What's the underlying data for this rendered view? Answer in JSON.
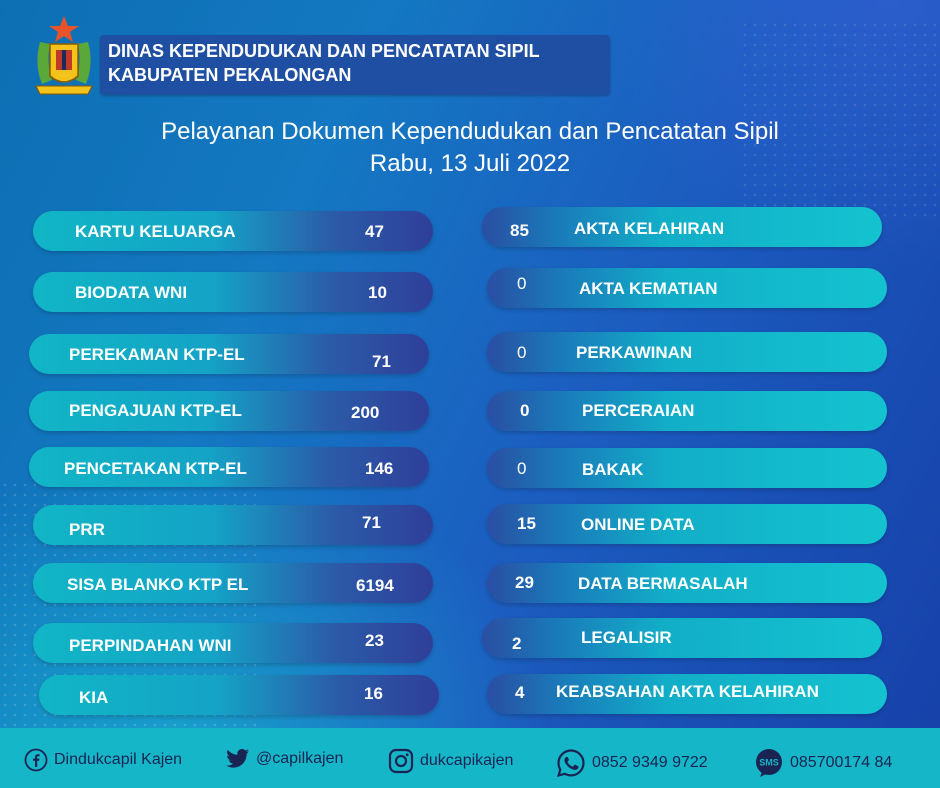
{
  "header": {
    "org_line1": "DINAS KEPENDUDUKAN DAN PENCATATAN SIPIL",
    "org_line2": "KABUPATEN PEKALONGAN",
    "title_line1": "Pelayanan Dokumen Kependudukan dan Pencatatan Sipil",
    "title_line2": "Rabu, 13 Juli 2022"
  },
  "left_items": [
    {
      "label": "KARTU KELUARGA",
      "value": "47"
    },
    {
      "label": "BIODATA WNI",
      "value": "10"
    },
    {
      "label": "PEREKAMAN KTP-EL",
      "value": "71"
    },
    {
      "label": "PENGAJUAN KTP-EL",
      "value": "200"
    },
    {
      "label": "PENCETAKAN KTP-EL",
      "value": "146"
    },
    {
      "label": "PRR",
      "value": "71"
    },
    {
      "label": "SISA BLANKO KTP EL",
      "value": "6194"
    },
    {
      "label": "PERPINDAHAN WNI",
      "value": "23"
    },
    {
      "label": "KIA",
      "value": "16"
    }
  ],
  "right_items": [
    {
      "value": "85",
      "label": "AKTA KELAHIRAN"
    },
    {
      "value": "0",
      "label": "AKTA KEMATIAN"
    },
    {
      "value": "0",
      "label": "PERKAWINAN"
    },
    {
      "value": "0",
      "label": "PERCERAIAN"
    },
    {
      "value": "0",
      "label": "BAKAK"
    },
    {
      "value": "15",
      "label": "ONLINE DATA"
    },
    {
      "value": "29",
      "label": "DATA BERMASALAH"
    },
    {
      "value": "2",
      "label": "LEGALISIR"
    },
    {
      "value": "4",
      "label": "KEABSAHAN AKTA KELAHIRAN"
    }
  ],
  "footer": {
    "facebook": "Dindukcapil Kajen",
    "twitter": "@capilkajen",
    "instagram": "dukcapikajen",
    "whatsapp": "0852 9349 9722",
    "sms": "085700174 84"
  },
  "icons": {
    "facebook": "facebook-icon",
    "twitter": "twitter-icon",
    "instagram": "instagram-icon",
    "whatsapp": "whatsapp-icon",
    "sms": "sms-icon"
  }
}
